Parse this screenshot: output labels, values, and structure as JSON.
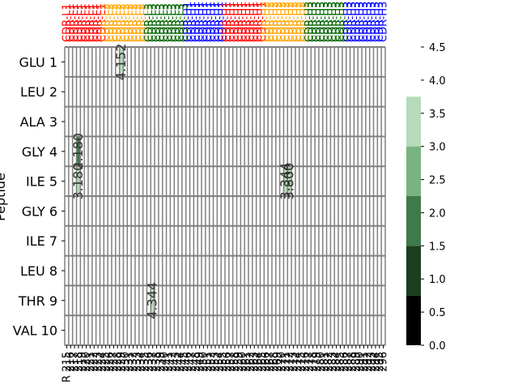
{
  "chart_data": {
    "type": "heatmap",
    "title": "",
    "xlabel": "",
    "ylabel": "Peptide",
    "rows": [
      "GLU 1",
      "LEU 2",
      "ALA 3",
      "GLY 4",
      "ILE 5",
      "GLY 6",
      "ILE 7",
      "LEU 8",
      "THR 9",
      "VAL 10"
    ],
    "columns": [
      "R 215",
      "216",
      "217",
      "218",
      "219",
      "220",
      "221",
      "222",
      "223",
      "224",
      "225",
      "226",
      "227",
      "228",
      "229",
      "230",
      "231",
      "232",
      "233",
      "234",
      "235",
      "236",
      "237",
      "238",
      "239",
      "240",
      "241",
      "242",
      "243",
      "244",
      "245",
      "246",
      "247",
      "248",
      "249",
      "250",
      "251",
      "252",
      "253",
      "254",
      "255",
      "256",
      "257",
      "258",
      "259",
      "260",
      "261",
      "262",
      "263",
      "264",
      "265",
      "266",
      "267",
      "268",
      "269",
      "270",
      "271",
      "272",
      "273",
      "274",
      "275",
      "276",
      "277",
      "278",
      "279",
      "280",
      "281",
      "282",
      "283",
      "284",
      "285",
      "286",
      "287",
      "288",
      "289",
      "290",
      "291",
      "292",
      "293",
      "294",
      "295",
      "296"
    ],
    "column_labels_note": "rotated tick labels, partially illegible",
    "top_region_labels": [
      {
        "label": "CDR-L1",
        "color": "#ff0000"
      },
      {
        "label": "CDR-L2",
        "color": "#ffa500"
      },
      {
        "label": "CDR-L3",
        "color": "#006400"
      },
      {
        "label": "CDR-H1",
        "color": "#0000ff"
      },
      {
        "label": "CDR-H1",
        "color": "#ff0000"
      },
      {
        "label": "CDR-H2",
        "color": "#ffa500"
      },
      {
        "label": "CDR-H3",
        "color": "#006400"
      },
      {
        "label": "CDR-H3",
        "color": "#0000ff"
      }
    ],
    "annotated_cells": [
      {
        "row": "GLU 1",
        "col_index": 14,
        "value": 4.152
      },
      {
        "row": "GLY 4",
        "col_index": 3,
        "value": 2.18
      },
      {
        "row": "ILE 5",
        "col_index": 3,
        "value": 3.18
      },
      {
        "row": "ILE 5",
        "col_index": 56,
        "value": 3.344
      },
      {
        "row": "ILE 5",
        "col_index": 57,
        "value": 3.8
      },
      {
        "row": "THR 9",
        "col_index": 22,
        "value": 4.344
      }
    ],
    "colorbar": {
      "min": 0.0,
      "max": 4.5,
      "ticks": [
        "0.0",
        "0.5",
        "1.0",
        "1.5",
        "2.0",
        "2.5",
        "3.0",
        "3.5",
        "4.0",
        "4.5"
      ],
      "bands": [
        {
          "from": 0.0,
          "to": 0.75,
          "color": "#000000"
        },
        {
          "from": 0.75,
          "to": 1.5,
          "color": "#1b3f20"
        },
        {
          "from": 1.5,
          "to": 2.25,
          "color": "#3f7a4c"
        },
        {
          "from": 2.25,
          "to": 3.0,
          "color": "#78b380"
        },
        {
          "from": 3.0,
          "to": 3.75,
          "color": "#b5dbb8"
        }
      ]
    },
    "grid": true,
    "grid_color": "#808080",
    "text_color": "#333333"
  }
}
